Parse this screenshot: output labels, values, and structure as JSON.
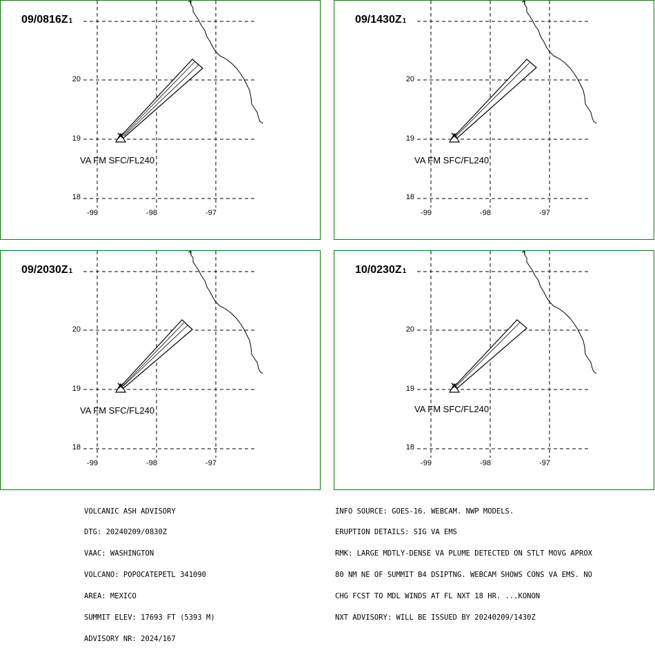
{
  "panels": [
    {
      "time": "09/0816Z",
      "suffix": "1",
      "level_label": "VA FM SFC/FL240"
    },
    {
      "time": "09/1430Z",
      "suffix": "1",
      "level_label": "VA FM SFC/FL240"
    },
    {
      "time": "09/2030Z",
      "suffix": "1",
      "level_label": "VA FM SFC/FL240"
    },
    {
      "time": "10/0230Z",
      "suffix": "1",
      "level_label": "VA FM SFC/FL240"
    }
  ],
  "lat_labels": [
    "20",
    "19",
    "18"
  ],
  "lon_labels": [
    "-99",
    "-98",
    "-97"
  ],
  "colors": {
    "frame": "#0a7a0a",
    "ink": "#000000"
  },
  "advisory_left": {
    "line1": "VOLCANIC ASH ADVISORY",
    "line2": "DTG: 20240209/0830Z",
    "line3": "VAAC: WASHINGTON",
    "line4": "VOLCANO: POPOCATEPETL 341090",
    "line5": "AREA: MEXICO",
    "line6": "SUMMIT ELEV: 17693 FT (5393 M)",
    "line7": "ADVISORY NR: 2024/167"
  },
  "advisory_right": {
    "line1": "INFO SOURCE: GOES-16. WEBCAM. NWP MODELS.",
    "line2": "ERUPTION DETAILS: SIG VA EMS",
    "line3": "RMK: LARGE MDTLY-DENSE VA PLUME DETECTED ON STLT MOVG APROX",
    "line4": "80 NM NE OF SUMMIT B4 DSIPTNG. WEBCAM SHOWS CONS VA EMS. NO",
    "line5": "CHG FCST TO MDL WINDS AT FL NXT 18 HR. ...KONON",
    "line6": "NXT ADVISORY: WILL BE ISSUED BY 20240209/1430Z"
  }
}
